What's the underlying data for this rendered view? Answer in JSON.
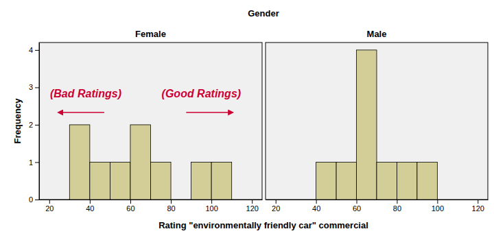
{
  "chart_data": {
    "type": "histogram",
    "title": "Gender",
    "xlabel": "Rating \"environmentally friendly car\" commercial",
    "ylabel": "Frequency",
    "bins": [
      20,
      30,
      40,
      50,
      60,
      70,
      80,
      90,
      100,
      110,
      120
    ],
    "series": [
      {
        "name": "Female",
        "color": "#d3ce97",
        "values": [
          0,
          2,
          1,
          1,
          2,
          1,
          0,
          1,
          1,
          0
        ]
      },
      {
        "name": "Male",
        "color": "#d3ce97",
        "values": [
          0,
          0,
          1,
          1,
          4,
          1,
          1,
          1,
          0,
          0
        ]
      }
    ],
    "xlim": [
      15,
      125
    ],
    "xticks": [
      20,
      40,
      60,
      80,
      100,
      120
    ],
    "ylim": [
      0,
      4.2
    ],
    "yticks": [
      0,
      1,
      2,
      3,
      4
    ],
    "annotations": [
      "(Bad Ratings)",
      "(Good Ratings)"
    ]
  }
}
